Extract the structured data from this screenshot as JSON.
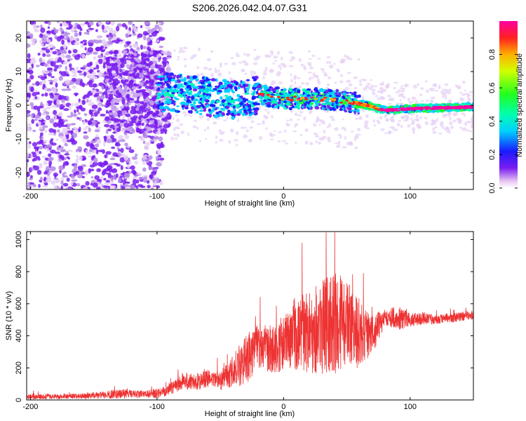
{
  "title": "S206.2026.042.04.07.G31",
  "chart_data": [
    {
      "type": "heatmap",
      "xlabel": "Height of straight line (km)",
      "ylabel": "Frequency (Hz)",
      "xlim": [
        -203,
        150
      ],
      "ylim": [
        -25,
        25
      ],
      "xticks": [
        -200,
        -100,
        0,
        100
      ],
      "yticks": [
        -20,
        -10,
        0,
        10,
        20
      ],
      "colorbar": {
        "label": "Normalized spectral amplitude",
        "range": [
          0,
          1
        ],
        "ticks": [
          "0.0",
          "0.2",
          "0.4",
          "0.6",
          "0.8"
        ],
        "tick_values": [
          0.0,
          0.2,
          0.4,
          0.6,
          0.8
        ]
      },
      "ridge": {
        "description_points_x": [
          -100,
          -80,
          -60,
          -40,
          -20,
          0,
          20,
          40,
          60,
          80,
          100,
          150
        ],
        "frequency_hz": [
          4,
          3.5,
          2.5,
          1.5,
          3,
          2,
          2,
          1.5,
          0.5,
          -1.5,
          -1,
          -0.5
        ]
      }
    },
    {
      "type": "line",
      "xlabel": "Height of straight line (km)",
      "ylabel": "SNR (10 * v/v)",
      "xlim": [
        -203,
        150
      ],
      "ylim": [
        0,
        1050
      ],
      "xticks": [
        -200,
        -100,
        0,
        100
      ],
      "yticks": [
        0,
        200,
        400,
        600,
        800,
        1000
      ],
      "color": "#ee3333",
      "envelope": {
        "x": [
          -203,
          -180,
          -150,
          -130,
          -110,
          -100,
          -90,
          -80,
          -70,
          -60,
          -50,
          -40,
          -30,
          -20,
          -10,
          0,
          10,
          20,
          30,
          40,
          50,
          60,
          70,
          80,
          90,
          100,
          110,
          120,
          130,
          140,
          150
        ],
        "mean": [
          20,
          22,
          25,
          40,
          35,
          40,
          70,
          120,
          110,
          130,
          120,
          180,
          250,
          330,
          320,
          350,
          400,
          430,
          460,
          480,
          470,
          420,
          400,
          520,
          510,
          500,
          510,
          500,
          510,
          520,
          530
        ],
        "amplitude": [
          15,
          15,
          20,
          30,
          20,
          30,
          40,
          60,
          50,
          60,
          60,
          100,
          160,
          140,
          150,
          180,
          220,
          260,
          300,
          320,
          280,
          220,
          120,
          60,
          80,
          40,
          40,
          30,
          30,
          30,
          30
        ]
      }
    }
  ]
}
